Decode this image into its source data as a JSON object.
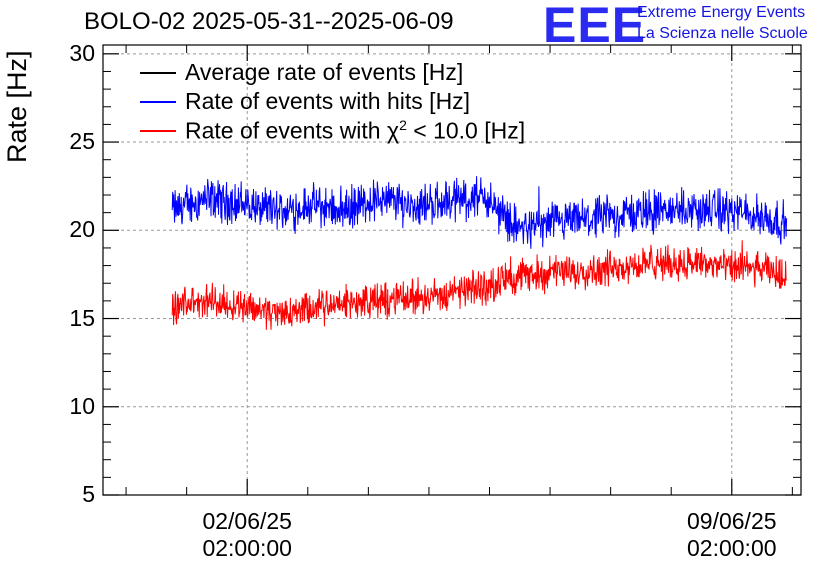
{
  "chart_data": {
    "type": "line",
    "title": "BOLO-02 2025-05-31--2025-06-09",
    "ylabel": "Rate [Hz]",
    "xlabel": "",
    "ylim": [
      5,
      30.5
    ],
    "yticks": [
      "5",
      "10",
      "15",
      "20",
      "25",
      "30"
    ],
    "xlim": [
      "2025-05-31T00:00:00",
      "2025-06-10T02:00:00"
    ],
    "xticks": [
      {
        "date": "2025-06-02T02:00:00",
        "line1": "02/06/25",
        "line2": "02:00:00"
      },
      {
        "date": "2025-06-09T02:00:00",
        "line1": "09/06/25",
        "line2": "02:00:00"
      }
    ],
    "grid": true,
    "legend_position": "top-left",
    "series": [
      {
        "name": "Average rate of events [Hz]",
        "color": "#000000",
        "x": [],
        "values": []
      },
      {
        "name": "Rate of events with hits [Hz]",
        "color": "#0000ff",
        "noise": 0.9,
        "x": [
          "2025-06-01T00:00:00",
          "2025-06-01T12:00:00",
          "2025-06-02T00:00:00",
          "2025-06-02T12:00:00",
          "2025-06-03T00:00:00",
          "2025-06-03T12:00:00",
          "2025-06-04T00:00:00",
          "2025-06-04T12:00:00",
          "2025-06-05T00:00:00",
          "2025-06-05T12:00:00",
          "2025-06-06T00:00:00",
          "2025-06-06T12:00:00",
          "2025-06-07T00:00:00",
          "2025-06-07T12:00:00",
          "2025-06-08T00:00:00",
          "2025-06-08T12:00:00",
          "2025-06-09T00:00:00",
          "2025-06-09T12:00:00",
          "2025-06-09T21:00:00"
        ],
        "values": [
          21.2,
          21.8,
          21.5,
          21.0,
          21.4,
          21.2,
          21.8,
          21.4,
          21.7,
          21.9,
          20.1,
          20.3,
          20.6,
          20.9,
          21.1,
          21.2,
          21.1,
          20.8,
          20.4
        ]
      },
      {
        "name": "Rate of events with χ² < 10.0 [Hz]",
        "name_text": "Rate of events with",
        "name_symbol": "χ",
        "name_sup": "2",
        "name_rest": " < 10.0 [Hz]",
        "color": "#ff0000",
        "noise": 0.75,
        "x": [
          "2025-06-01T00:00:00",
          "2025-06-01T12:00:00",
          "2025-06-02T00:00:00",
          "2025-06-02T12:00:00",
          "2025-06-03T00:00:00",
          "2025-06-03T12:00:00",
          "2025-06-04T00:00:00",
          "2025-06-04T12:00:00",
          "2025-06-05T00:00:00",
          "2025-06-05T12:00:00",
          "2025-06-06T00:00:00",
          "2025-06-06T12:00:00",
          "2025-06-07T00:00:00",
          "2025-06-07T12:00:00",
          "2025-06-08T00:00:00",
          "2025-06-08T12:00:00",
          "2025-06-09T00:00:00",
          "2025-06-09T12:00:00",
          "2025-06-09T21:00:00"
        ],
        "values": [
          15.6,
          16.0,
          15.8,
          15.3,
          15.5,
          15.9,
          16.0,
          16.2,
          16.4,
          16.8,
          17.4,
          17.6,
          17.7,
          18.0,
          18.1,
          18.2,
          17.9,
          17.8,
          17.4
        ]
      }
    ]
  },
  "logo": {
    "text": "EEE",
    "line1": "Extreme Energy Events",
    "line2": "La Scienza nelle Scuole",
    "color": "#2a2af0"
  }
}
